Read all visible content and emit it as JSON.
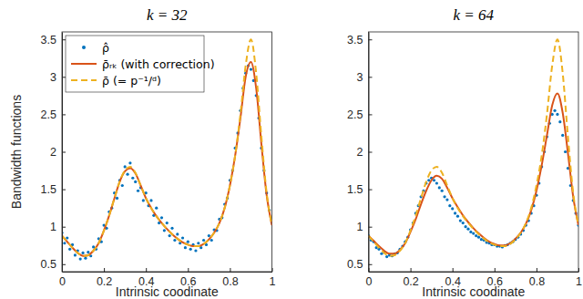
{
  "chart_data": [
    {
      "type": "line",
      "title": "k = 32",
      "xlabel": "Intrinsic coodinate",
      "ylabel": "Bandwidth functions",
      "xlim": [
        0,
        1
      ],
      "ylim": [
        0.4,
        3.6
      ],
      "xticks": [
        0,
        0.2,
        0.4,
        0.6,
        0.8,
        1
      ],
      "yticks": [
        0.5,
        1,
        1.5,
        2,
        2.5,
        3,
        3.5
      ],
      "legend": "northwest",
      "series": [
        {
          "name": "ρ̂",
          "type": "scatter",
          "marker": "dot",
          "color": "#0072BD",
          "x": [
            0,
            0.0125,
            0.025,
            0.0375,
            0.05,
            0.0625,
            0.075,
            0.0875,
            0.1,
            0.1125,
            0.125,
            0.1375,
            0.15,
            0.1625,
            0.175,
            0.1875,
            0.2,
            0.2125,
            0.225,
            0.2375,
            0.25,
            0.2625,
            0.275,
            0.2875,
            0.3,
            0.3125,
            0.325,
            0.3375,
            0.35,
            0.3625,
            0.375,
            0.3875,
            0.4,
            0.4125,
            0.425,
            0.4375,
            0.45,
            0.4625,
            0.475,
            0.4875,
            0.5,
            0.5125,
            0.525,
            0.5375,
            0.55,
            0.5625,
            0.575,
            0.5875,
            0.6,
            0.6125,
            0.625,
            0.6375,
            0.65,
            0.6625,
            0.675,
            0.6875,
            0.7,
            0.7125,
            0.725,
            0.7375,
            0.75,
            0.7625,
            0.775,
            0.7875,
            0.8,
            0.8125,
            0.825,
            0.8375,
            0.85,
            0.8625,
            0.875,
            0.8875,
            0.9,
            0.9125,
            0.925,
            0.9375,
            0.95,
            0.9625,
            0.975,
            0.9875,
            1
          ],
          "values": [
            0.92,
            0.78,
            0.85,
            0.7,
            0.76,
            0.62,
            0.68,
            0.57,
            0.65,
            0.58,
            0.66,
            0.61,
            0.73,
            0.7,
            0.84,
            0.8,
            1.02,
            0.98,
            1.2,
            1.25,
            1.45,
            1.38,
            1.62,
            1.55,
            1.8,
            1.7,
            1.85,
            1.65,
            1.6,
            1.48,
            1.52,
            1.35,
            1.45,
            1.28,
            1.35,
            1.15,
            1.25,
            1.05,
            1.12,
            0.95,
            1.05,
            0.88,
            0.98,
            0.82,
            0.9,
            0.78,
            0.85,
            0.72,
            0.8,
            0.7,
            0.76,
            0.68,
            0.78,
            0.72,
            0.82,
            0.76,
            0.88,
            0.82,
            0.96,
            0.95,
            1.1,
            1.12,
            1.3,
            1.38,
            1.62,
            1.75,
            2.05,
            2.25,
            2.55,
            2.85,
            3.05,
            3.15,
            3.1,
            2.95,
            2.75,
            2.45,
            2.05,
            1.75,
            1.45,
            1.22,
            1.05
          ]
        },
        {
          "name": "ρ̄ᵣₖ (with correction)",
          "type": "line",
          "line_style": "solid",
          "color": "#D95319",
          "x": [
            0,
            0.025,
            0.05,
            0.075,
            0.1,
            0.125,
            0.15,
            0.175,
            0.2,
            0.225,
            0.25,
            0.275,
            0.3,
            0.325,
            0.35,
            0.375,
            0.4,
            0.425,
            0.45,
            0.475,
            0.5,
            0.525,
            0.55,
            0.575,
            0.6,
            0.625,
            0.65,
            0.675,
            0.7,
            0.725,
            0.75,
            0.775,
            0.8,
            0.825,
            0.85,
            0.875,
            0.9,
            0.925,
            0.95,
            0.975,
            1
          ],
          "values": [
            0.88,
            0.8,
            0.72,
            0.65,
            0.61,
            0.62,
            0.68,
            0.78,
            0.95,
            1.15,
            1.38,
            1.6,
            1.74,
            1.78,
            1.71,
            1.55,
            1.38,
            1.25,
            1.14,
            1.05,
            0.97,
            0.9,
            0.84,
            0.79,
            0.76,
            0.74,
            0.74,
            0.77,
            0.83,
            0.92,
            1.05,
            1.25,
            1.55,
            1.95,
            2.45,
            3.0,
            3.2,
            2.85,
            2.1,
            1.42,
            1.02
          ]
        },
        {
          "name": "ρ̄ (= p⁻¹/ᵈ)",
          "type": "line",
          "line_style": "dashed",
          "color": "#EDB120",
          "x": [
            0,
            0.025,
            0.05,
            0.075,
            0.1,
            0.125,
            0.15,
            0.175,
            0.2,
            0.225,
            0.25,
            0.275,
            0.3,
            0.325,
            0.35,
            0.375,
            0.4,
            0.425,
            0.45,
            0.475,
            0.5,
            0.525,
            0.55,
            0.575,
            0.6,
            0.625,
            0.65,
            0.675,
            0.7,
            0.725,
            0.75,
            0.775,
            0.8,
            0.825,
            0.85,
            0.875,
            0.9,
            0.925,
            0.95,
            0.975,
            1
          ],
          "values": [
            0.88,
            0.8,
            0.72,
            0.65,
            0.61,
            0.62,
            0.68,
            0.78,
            0.95,
            1.15,
            1.38,
            1.6,
            1.75,
            1.8,
            1.72,
            1.55,
            1.38,
            1.25,
            1.14,
            1.05,
            0.97,
            0.9,
            0.84,
            0.79,
            0.76,
            0.74,
            0.74,
            0.77,
            0.83,
            0.92,
            1.05,
            1.25,
            1.55,
            1.95,
            2.5,
            3.15,
            3.5,
            3.05,
            2.2,
            1.45,
            1.02
          ]
        }
      ]
    },
    {
      "type": "line",
      "title": "k = 64",
      "xlabel": "Intrinsic coodinate",
      "xlim": [
        0,
        1
      ],
      "ylim": [
        0.4,
        3.6
      ],
      "xticks": [
        0,
        0.2,
        0.4,
        0.6,
        0.8,
        1
      ],
      "yticks": [
        0.5,
        1,
        1.5,
        2,
        2.5,
        3,
        3.5
      ],
      "series": [
        {
          "type": "scatter",
          "marker": "dot",
          "color": "#0072BD",
          "x": [
            0,
            0.0125,
            0.025,
            0.0375,
            0.05,
            0.0625,
            0.075,
            0.0875,
            0.1,
            0.1125,
            0.125,
            0.1375,
            0.15,
            0.1625,
            0.175,
            0.1875,
            0.2,
            0.2125,
            0.225,
            0.2375,
            0.25,
            0.2625,
            0.275,
            0.2875,
            0.3,
            0.3125,
            0.325,
            0.3375,
            0.35,
            0.3625,
            0.375,
            0.3875,
            0.4,
            0.4125,
            0.425,
            0.4375,
            0.45,
            0.4625,
            0.475,
            0.4875,
            0.5,
            0.5125,
            0.525,
            0.5375,
            0.55,
            0.5625,
            0.575,
            0.5875,
            0.6,
            0.6125,
            0.625,
            0.6375,
            0.65,
            0.6625,
            0.675,
            0.6875,
            0.7,
            0.7125,
            0.725,
            0.7375,
            0.75,
            0.7625,
            0.775,
            0.7875,
            0.8,
            0.8125,
            0.825,
            0.8375,
            0.85,
            0.8625,
            0.875,
            0.8875,
            0.9,
            0.9125,
            0.925,
            0.9375,
            0.95,
            0.9625,
            0.975,
            0.9875,
            1
          ],
          "values": [
            0.88,
            0.82,
            0.8,
            0.72,
            0.7,
            0.64,
            0.66,
            0.6,
            0.62,
            0.61,
            0.64,
            0.65,
            0.7,
            0.74,
            0.8,
            0.86,
            0.96,
            1.05,
            1.18,
            1.28,
            1.4,
            1.48,
            1.58,
            1.62,
            1.65,
            1.62,
            1.58,
            1.52,
            1.48,
            1.4,
            1.36,
            1.28,
            1.24,
            1.18,
            1.14,
            1.08,
            1.05,
            1.0,
            0.97,
            0.93,
            0.91,
            0.88,
            0.86,
            0.83,
            0.82,
            0.79,
            0.78,
            0.76,
            0.76,
            0.74,
            0.74,
            0.73,
            0.75,
            0.76,
            0.78,
            0.8,
            0.83,
            0.86,
            0.9,
            0.95,
            1.02,
            1.08,
            1.18,
            1.28,
            1.42,
            1.58,
            1.8,
            2.0,
            2.2,
            2.38,
            2.5,
            2.55,
            2.5,
            2.4,
            2.22,
            2.0,
            1.78,
            1.55,
            1.35,
            1.18,
            1.02
          ]
        },
        {
          "type": "line",
          "line_style": "solid",
          "color": "#D95319",
          "x": [
            0,
            0.025,
            0.05,
            0.075,
            0.1,
            0.125,
            0.15,
            0.175,
            0.2,
            0.225,
            0.25,
            0.275,
            0.3,
            0.325,
            0.35,
            0.375,
            0.4,
            0.425,
            0.45,
            0.475,
            0.5,
            0.525,
            0.55,
            0.575,
            0.6,
            0.625,
            0.65,
            0.675,
            0.7,
            0.725,
            0.75,
            0.775,
            0.8,
            0.825,
            0.85,
            0.875,
            0.9,
            0.925,
            0.95,
            0.975,
            1
          ],
          "values": [
            0.88,
            0.81,
            0.74,
            0.68,
            0.64,
            0.64,
            0.69,
            0.78,
            0.93,
            1.1,
            1.3,
            1.48,
            1.62,
            1.68,
            1.64,
            1.52,
            1.38,
            1.26,
            1.15,
            1.06,
            0.98,
            0.91,
            0.85,
            0.8,
            0.77,
            0.75,
            0.75,
            0.78,
            0.84,
            0.92,
            1.04,
            1.22,
            1.48,
            1.82,
            2.22,
            2.62,
            2.78,
            2.52,
            1.98,
            1.4,
            1.02
          ]
        },
        {
          "type": "line",
          "line_style": "dashed",
          "color": "#EDB120",
          "x": [
            0,
            0.025,
            0.05,
            0.075,
            0.1,
            0.125,
            0.15,
            0.175,
            0.2,
            0.225,
            0.25,
            0.275,
            0.3,
            0.325,
            0.35,
            0.375,
            0.4,
            0.425,
            0.45,
            0.475,
            0.5,
            0.525,
            0.55,
            0.575,
            0.6,
            0.625,
            0.65,
            0.675,
            0.7,
            0.725,
            0.75,
            0.775,
            0.8,
            0.825,
            0.85,
            0.875,
            0.9,
            0.925,
            0.95,
            0.975,
            1
          ],
          "values": [
            0.88,
            0.8,
            0.72,
            0.65,
            0.61,
            0.62,
            0.68,
            0.78,
            0.95,
            1.15,
            1.38,
            1.6,
            1.75,
            1.8,
            1.72,
            1.55,
            1.38,
            1.25,
            1.14,
            1.05,
            0.97,
            0.9,
            0.84,
            0.79,
            0.76,
            0.74,
            0.74,
            0.77,
            0.83,
            0.92,
            1.05,
            1.25,
            1.55,
            1.95,
            2.5,
            3.15,
            3.5,
            3.05,
            2.2,
            1.45,
            1.02
          ]
        }
      ]
    }
  ]
}
